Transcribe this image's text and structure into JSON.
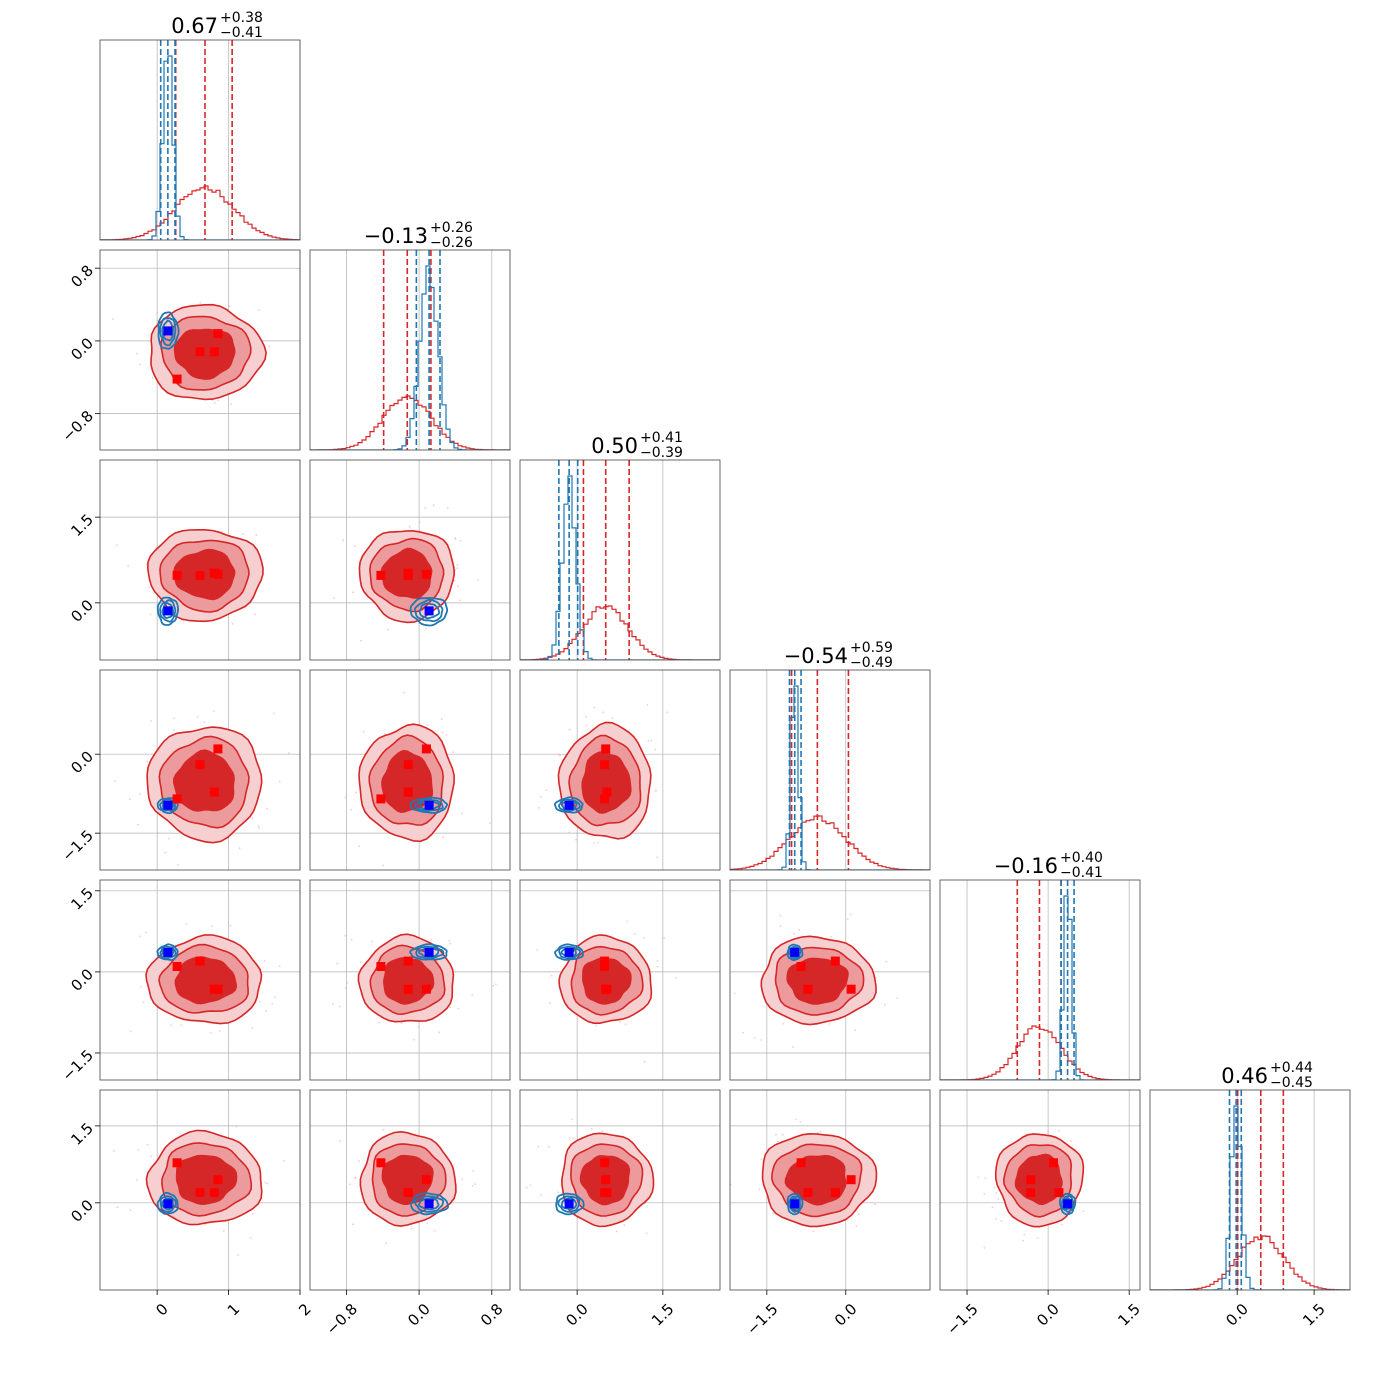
{
  "colors": {
    "model_a": "#d62728",
    "model_a_light1": "#ec9a9b",
    "model_a_light2": "#f6cfd0",
    "model_b": "#1f77b4",
    "truth_a": "#ff0000",
    "truth_b": "#0000ff",
    "grid": "#b0b0b0"
  },
  "chart_data": {
    "type": "corner",
    "n_params": 6,
    "grid": true,
    "ranges": [
      [
        -0.8,
        2.0
      ],
      [
        -1.2,
        1.0
      ],
      [
        -1.0,
        2.5
      ],
      [
        -2.2,
        1.6
      ],
      [
        -2.0,
        1.7
      ],
      [
        -1.7,
        2.2
      ]
    ],
    "ticks": [
      {
        "values": [
          0,
          1,
          2
        ],
        "labels": [
          "0",
          "1",
          "2"
        ]
      },
      {
        "values": [
          -0.8,
          0.0,
          0.8
        ],
        "labels": [
          "−0.8",
          "0.0",
          "0.8"
        ]
      },
      {
        "values": [
          0.0,
          1.5
        ],
        "labels": [
          "0.0",
          "1.5"
        ]
      },
      {
        "values": [
          -1.5,
          0.0
        ],
        "labels": [
          "−1.5",
          "0.0"
        ]
      },
      {
        "values": [
          -1.5,
          0.0,
          1.5
        ],
        "labels": [
          "−1.5",
          "0.0",
          "1.5"
        ]
      },
      {
        "values": [
          0.0,
          1.5
        ],
        "labels": [
          "0.0",
          "1.5"
        ]
      }
    ],
    "titles": [
      {
        "median": "0.67",
        "plus": "+0.38",
        "minus": "−0.41"
      },
      {
        "median": "−0.13",
        "plus": "+0.26",
        "minus": "−0.26"
      },
      {
        "median": "0.50",
        "plus": "+0.41",
        "minus": "−0.39"
      },
      {
        "median": "−0.54",
        "plus": "+0.59",
        "minus": "−0.49"
      },
      {
        "median": "−0.16",
        "plus": "+0.40",
        "minus": "−0.41"
      },
      {
        "median": "0.46",
        "plus": "+0.44",
        "minus": "−0.45"
      }
    ],
    "series": [
      {
        "color": "#d62728",
        "style": "filled",
        "means": [
          0.67,
          -0.13,
          0.5,
          -0.54,
          -0.16,
          0.46
        ],
        "sigmas": [
          0.4,
          0.26,
          0.4,
          0.54,
          0.4,
          0.45
        ],
        "quantiles": [
          [
            0.26,
            0.67,
            1.05
          ],
          [
            -0.39,
            -0.13,
            0.13
          ],
          [
            0.11,
            0.5,
            0.91
          ],
          [
            -1.03,
            -0.54,
            0.05
          ],
          [
            -0.57,
            -0.16,
            0.24
          ],
          [
            0.01,
            0.46,
            0.9
          ]
        ]
      },
      {
        "color": "#1f77b4",
        "style": "lines",
        "means": [
          0.15,
          0.11,
          -0.14,
          -0.97,
          0.36,
          -0.02
        ],
        "sigmas": [
          0.07,
          0.1,
          0.12,
          0.07,
          0.07,
          0.1
        ],
        "quantiles": [
          [
            0.05,
            0.15,
            0.25
          ],
          [
            -0.03,
            0.11,
            0.23
          ],
          [
            -0.32,
            -0.14,
            0.01
          ],
          [
            -1.07,
            -0.97,
            -0.85
          ],
          [
            0.24,
            0.36,
            0.48
          ],
          [
            -0.15,
            -0.02,
            0.08
          ]
        ]
      }
    ],
    "truth_markers_red": [
      [
        0.6,
        -0.12,
        0.48,
        -0.2,
        0.2,
        0.2
      ],
      [
        0.28,
        -0.42,
        0.48,
        -0.85,
        0.1,
        0.78
      ],
      [
        0.8,
        -0.12,
        0.52,
        -0.72,
        -0.32,
        0.2
      ],
      [
        0.85,
        0.08,
        0.5,
        0.1,
        -0.32,
        0.45
      ]
    ],
    "truth_marker_blue": [
      0.15,
      0.11,
      -0.14,
      -0.97,
      0.36,
      -0.02
    ]
  }
}
